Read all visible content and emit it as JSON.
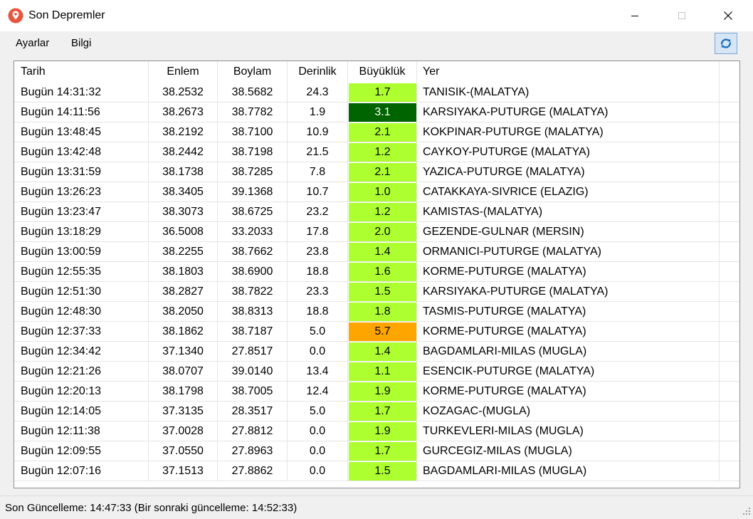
{
  "window": {
    "title": "Son Depremler"
  },
  "menu": {
    "settings_label": "Ayarlar",
    "info_label": "Bilgi"
  },
  "colors": {
    "mag_low": "#adff2f",
    "mag_mid": "#006400",
    "mag_high": "#ffa500",
    "app_icon": "#e8553e"
  },
  "table": {
    "headers": {
      "date": "Tarih",
      "lat": "Enlem",
      "lon": "Boylam",
      "depth": "Derinlik",
      "mag": "Büyüklük",
      "place": "Yer"
    },
    "rows": [
      {
        "date": "Bugün 14:31:32",
        "lat": "38.2532",
        "lon": "38.5682",
        "depth": "24.3",
        "mag": "1.7",
        "place": "TANISIK-(MALATYA)",
        "mag_bg": "#adff2f",
        "mag_fg": "#000000"
      },
      {
        "date": "Bugün 14:11:56",
        "lat": "38.2673",
        "lon": "38.7782",
        "depth": "1.9",
        "mag": "3.1",
        "place": "KARSIYAKA-PUTURGE (MALATYA)",
        "mag_bg": "#006400",
        "mag_fg": "#ffffff"
      },
      {
        "date": "Bugün 13:48:45",
        "lat": "38.2192",
        "lon": "38.7100",
        "depth": "10.9",
        "mag": "2.1",
        "place": "KOKPINAR-PUTURGE (MALATYA)",
        "mag_bg": "#adff2f",
        "mag_fg": "#000000"
      },
      {
        "date": "Bugün 13:42:48",
        "lat": "38.2442",
        "lon": "38.7198",
        "depth": "21.5",
        "mag": "1.2",
        "place": "CAYKOY-PUTURGE (MALATYA)",
        "mag_bg": "#adff2f",
        "mag_fg": "#000000"
      },
      {
        "date": "Bugün 13:31:59",
        "lat": "38.1738",
        "lon": "38.7285",
        "depth": "7.8",
        "mag": "2.1",
        "place": "YAZICA-PUTURGE (MALATYA)",
        "mag_bg": "#adff2f",
        "mag_fg": "#000000"
      },
      {
        "date": "Bugün 13:26:23",
        "lat": "38.3405",
        "lon": "39.1368",
        "depth": "10.7",
        "mag": "1.0",
        "place": "CATAKKAYA-SIVRICE (ELAZIG)",
        "mag_bg": "#adff2f",
        "mag_fg": "#000000"
      },
      {
        "date": "Bugün 13:23:47",
        "lat": "38.3073",
        "lon": "38.6725",
        "depth": "23.2",
        "mag": "1.2",
        "place": "KAMISTAS-(MALATYA)",
        "mag_bg": "#adff2f",
        "mag_fg": "#000000"
      },
      {
        "date": "Bugün 13:18:29",
        "lat": "36.5008",
        "lon": "33.2033",
        "depth": "17.8",
        "mag": "2.0",
        "place": "GEZENDE-GULNAR (MERSIN)",
        "mag_bg": "#adff2f",
        "mag_fg": "#000000"
      },
      {
        "date": "Bugün 13:00:59",
        "lat": "38.2255",
        "lon": "38.7662",
        "depth": "23.8",
        "mag": "1.4",
        "place": "ORMANICI-PUTURGE (MALATYA)",
        "mag_bg": "#adff2f",
        "mag_fg": "#000000"
      },
      {
        "date": "Bugün 12:55:35",
        "lat": "38.1803",
        "lon": "38.6900",
        "depth": "18.8",
        "mag": "1.6",
        "place": "KORME-PUTURGE (MALATYA)",
        "mag_bg": "#adff2f",
        "mag_fg": "#000000"
      },
      {
        "date": "Bugün 12:51:30",
        "lat": "38.2827",
        "lon": "38.7822",
        "depth": "23.3",
        "mag": "1.5",
        "place": "KARSIYAKA-PUTURGE (MALATYA)",
        "mag_bg": "#adff2f",
        "mag_fg": "#000000"
      },
      {
        "date": "Bugün 12:48:30",
        "lat": "38.2050",
        "lon": "38.8313",
        "depth": "18.8",
        "mag": "1.8",
        "place": "TASMIS-PUTURGE (MALATYA)",
        "mag_bg": "#adff2f",
        "mag_fg": "#000000"
      },
      {
        "date": "Bugün 12:37:33",
        "lat": "38.1862",
        "lon": "38.7187",
        "depth": "5.0",
        "mag": "5.7",
        "place": "KORME-PUTURGE (MALATYA)",
        "mag_bg": "#ffa500",
        "mag_fg": "#000000"
      },
      {
        "date": "Bugün 12:34:42",
        "lat": "37.1340",
        "lon": "27.8517",
        "depth": "0.0",
        "mag": "1.4",
        "place": "BAGDAMLARI-MILAS (MUGLA)",
        "mag_bg": "#adff2f",
        "mag_fg": "#000000"
      },
      {
        "date": "Bugün 12:21:26",
        "lat": "38.0707",
        "lon": "39.0140",
        "depth": "13.4",
        "mag": "1.1",
        "place": "ESENCIK-PUTURGE (MALATYA)",
        "mag_bg": "#adff2f",
        "mag_fg": "#000000"
      },
      {
        "date": "Bugün 12:20:13",
        "lat": "38.1798",
        "lon": "38.7005",
        "depth": "12.4",
        "mag": "1.9",
        "place": "KORME-PUTURGE (MALATYA)",
        "mag_bg": "#adff2f",
        "mag_fg": "#000000"
      },
      {
        "date": "Bugün 12:14:05",
        "lat": "37.3135",
        "lon": "28.3517",
        "depth": "5.0",
        "mag": "1.7",
        "place": "KOZAGAC-(MUGLA)",
        "mag_bg": "#adff2f",
        "mag_fg": "#000000"
      },
      {
        "date": "Bugün 12:11:38",
        "lat": "37.0028",
        "lon": "27.8812",
        "depth": "0.0",
        "mag": "1.9",
        "place": "TURKEVLERI-MILAS (MUGLA)",
        "mag_bg": "#adff2f",
        "mag_fg": "#000000"
      },
      {
        "date": "Bugün 12:09:55",
        "lat": "37.0550",
        "lon": "27.8963",
        "depth": "0.0",
        "mag": "1.7",
        "place": "GURCEGIZ-MILAS (MUGLA)",
        "mag_bg": "#adff2f",
        "mag_fg": "#000000"
      },
      {
        "date": "Bugün 12:07:16",
        "lat": "37.1513",
        "lon": "27.8862",
        "depth": "0.0",
        "mag": "1.5",
        "place": "BAGDAMLARI-MILAS (MUGLA)",
        "mag_bg": "#adff2f",
        "mag_fg": "#000000"
      }
    ]
  },
  "status": {
    "text": "Son Güncelleme: 14:47:33 (Bir sonraki güncelleme: 14:52:33)"
  }
}
